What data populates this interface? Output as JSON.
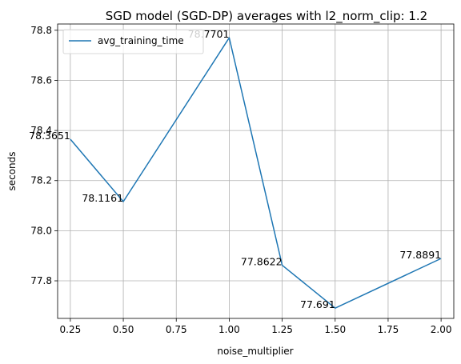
{
  "chart_data": {
    "type": "line",
    "title": "SGD model (SGD-DP) averages with l2_norm_clip: 1.2",
    "xlabel": "noise_multiplier",
    "ylabel": "seconds",
    "xlim": [
      0.19,
      2.06
    ],
    "ylim": [
      77.65,
      78.825
    ],
    "xticks": [
      0.25,
      0.5,
      0.75,
      1.0,
      1.25,
      1.5,
      1.75,
      2.0
    ],
    "xtick_labels": [
      "0.25",
      "0.50",
      "0.75",
      "1.00",
      "1.25",
      "1.50",
      "1.75",
      "2.00"
    ],
    "yticks": [
      77.8,
      78.0,
      78.2,
      78.4,
      78.6,
      78.8
    ],
    "ytick_labels": [
      "77.8",
      "78.0",
      "78.2",
      "78.4",
      "78.6",
      "78.8"
    ],
    "grid": true,
    "legend_position": "upper-left",
    "series": [
      {
        "name": "avg_training_time",
        "color": "#1f77b4",
        "x": [
          0.25,
          0.5,
          1.0,
          1.25,
          1.5,
          2.0
        ],
        "y": [
          78.3651,
          78.1161,
          78.7701,
          77.8622,
          77.691,
          77.8891
        ],
        "labels": [
          "78.3651",
          "78.1161",
          "78.7701",
          "77.8622",
          "77.691",
          "77.8891"
        ]
      }
    ]
  }
}
